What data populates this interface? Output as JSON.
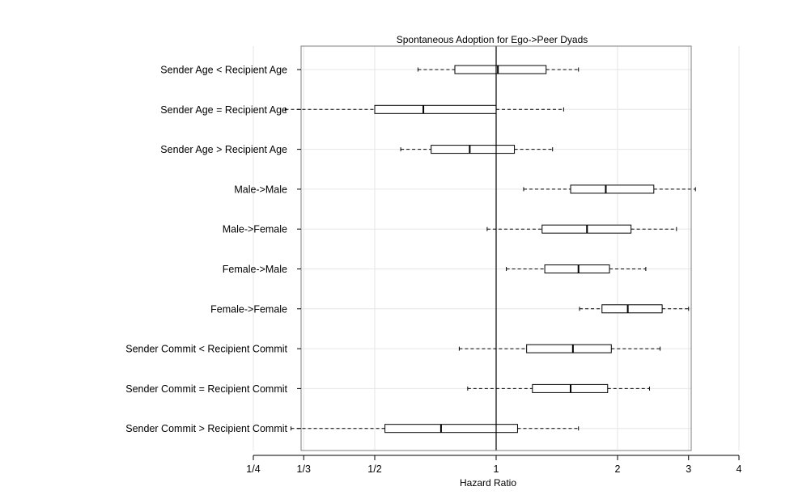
{
  "chart_data": {
    "type": "boxplot",
    "orientation": "horizontal",
    "title": "Spontaneous Adoption for Ego->Peer Dyads",
    "xlabel": "Hazard Ratio",
    "ylabel": "",
    "x_scale": "log",
    "xlim": [
      0.22,
      4.4
    ],
    "grid": true,
    "reference_line": 1,
    "x_ticks": [
      {
        "value": 0.25,
        "label": "1/4"
      },
      {
        "value": 0.3333,
        "label": "1/3"
      },
      {
        "value": 0.5,
        "label": "1/2"
      },
      {
        "value": 1,
        "label": "1"
      },
      {
        "value": 2,
        "label": "2"
      },
      {
        "value": 3,
        "label": "3"
      },
      {
        "value": 4,
        "label": "4"
      }
    ],
    "categories": [
      "Sender Age < Recipient Age",
      "Sender Age = Recipient Age",
      "Sender Age > Recipient Age",
      "Male->Male",
      "Male->Female",
      "Female->Male",
      "Female->Female",
      "Sender Commit < Recipient Commit",
      "Sender Commit = Recipient Commit",
      "Sender Commit > Recipient Commit"
    ],
    "boxes": [
      {
        "whisker_low": 0.64,
        "q1": 0.79,
        "median": 1.01,
        "q3": 1.33,
        "whisker_high": 1.6
      },
      {
        "whisker_low": 0.3,
        "q1": 0.5,
        "median": 0.66,
        "q3": 1.0,
        "whisker_high": 1.47
      },
      {
        "whisker_low": 0.58,
        "q1": 0.69,
        "median": 0.86,
        "q3": 1.11,
        "whisker_high": 1.38
      },
      {
        "whisker_low": 1.17,
        "q1": 1.53,
        "median": 1.87,
        "q3": 2.46,
        "whisker_high": 3.12
      },
      {
        "whisker_low": 0.95,
        "q1": 1.3,
        "median": 1.68,
        "q3": 2.16,
        "whisker_high": 2.8
      },
      {
        "whisker_low": 1.06,
        "q1": 1.32,
        "median": 1.6,
        "q3": 1.91,
        "whisker_high": 2.35
      },
      {
        "whisker_low": 1.61,
        "q1": 1.83,
        "median": 2.12,
        "q3": 2.58,
        "whisker_high": 3.0
      },
      {
        "whisker_low": 0.81,
        "q1": 1.19,
        "median": 1.55,
        "q3": 1.93,
        "whisker_high": 2.55
      },
      {
        "whisker_low": 0.85,
        "q1": 1.23,
        "median": 1.53,
        "q3": 1.89,
        "whisker_high": 2.4
      },
      {
        "whisker_low": 0.31,
        "q1": 0.53,
        "median": 0.73,
        "q3": 1.13,
        "whisker_high": 1.6
      }
    ],
    "colors": {
      "box": "#000000",
      "grid": "#e6e6e6",
      "frame": "#7f7f7f",
      "background": "#ffffff"
    }
  }
}
